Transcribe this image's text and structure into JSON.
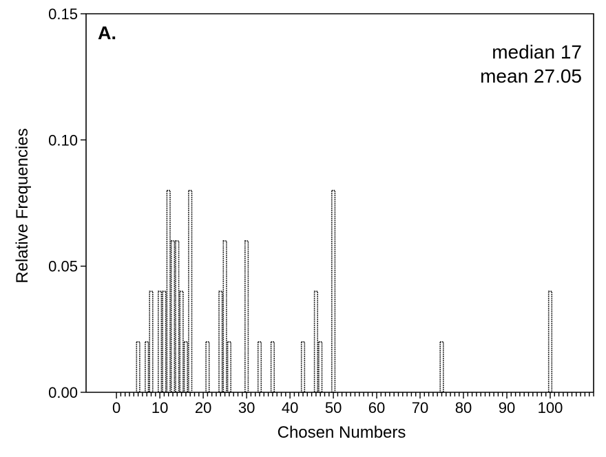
{
  "chart_data": {
    "type": "bar",
    "panel_label": "A.",
    "annotations": [
      "median 17",
      "mean 27.05"
    ],
    "xlabel": "Chosen Numbers",
    "ylabel": "Relative Frequencies",
    "xlim": [
      -7,
      110
    ],
    "ylim": [
      0,
      0.15
    ],
    "x_ticks": [
      "0",
      "10",
      "20",
      "30",
      "40",
      "50",
      "60",
      "70",
      "80",
      "90",
      "100"
    ],
    "y_ticks": [
      "0.00",
      "0.05",
      "0.10",
      "0.15"
    ],
    "grid": false,
    "legend": "none",
    "x": [
      5,
      7,
      8,
      10,
      11,
      12,
      13,
      14,
      15,
      16,
      17,
      21,
      24,
      25,
      26,
      30,
      33,
      36,
      43,
      46,
      47,
      50,
      75,
      100
    ],
    "values": [
      0.02,
      0.02,
      0.04,
      0.04,
      0.04,
      0.08,
      0.06,
      0.06,
      0.04,
      0.02,
      0.08,
      0.02,
      0.04,
      0.06,
      0.02,
      0.06,
      0.02,
      0.02,
      0.02,
      0.04,
      0.02,
      0.08,
      0.02,
      0.04
    ]
  }
}
